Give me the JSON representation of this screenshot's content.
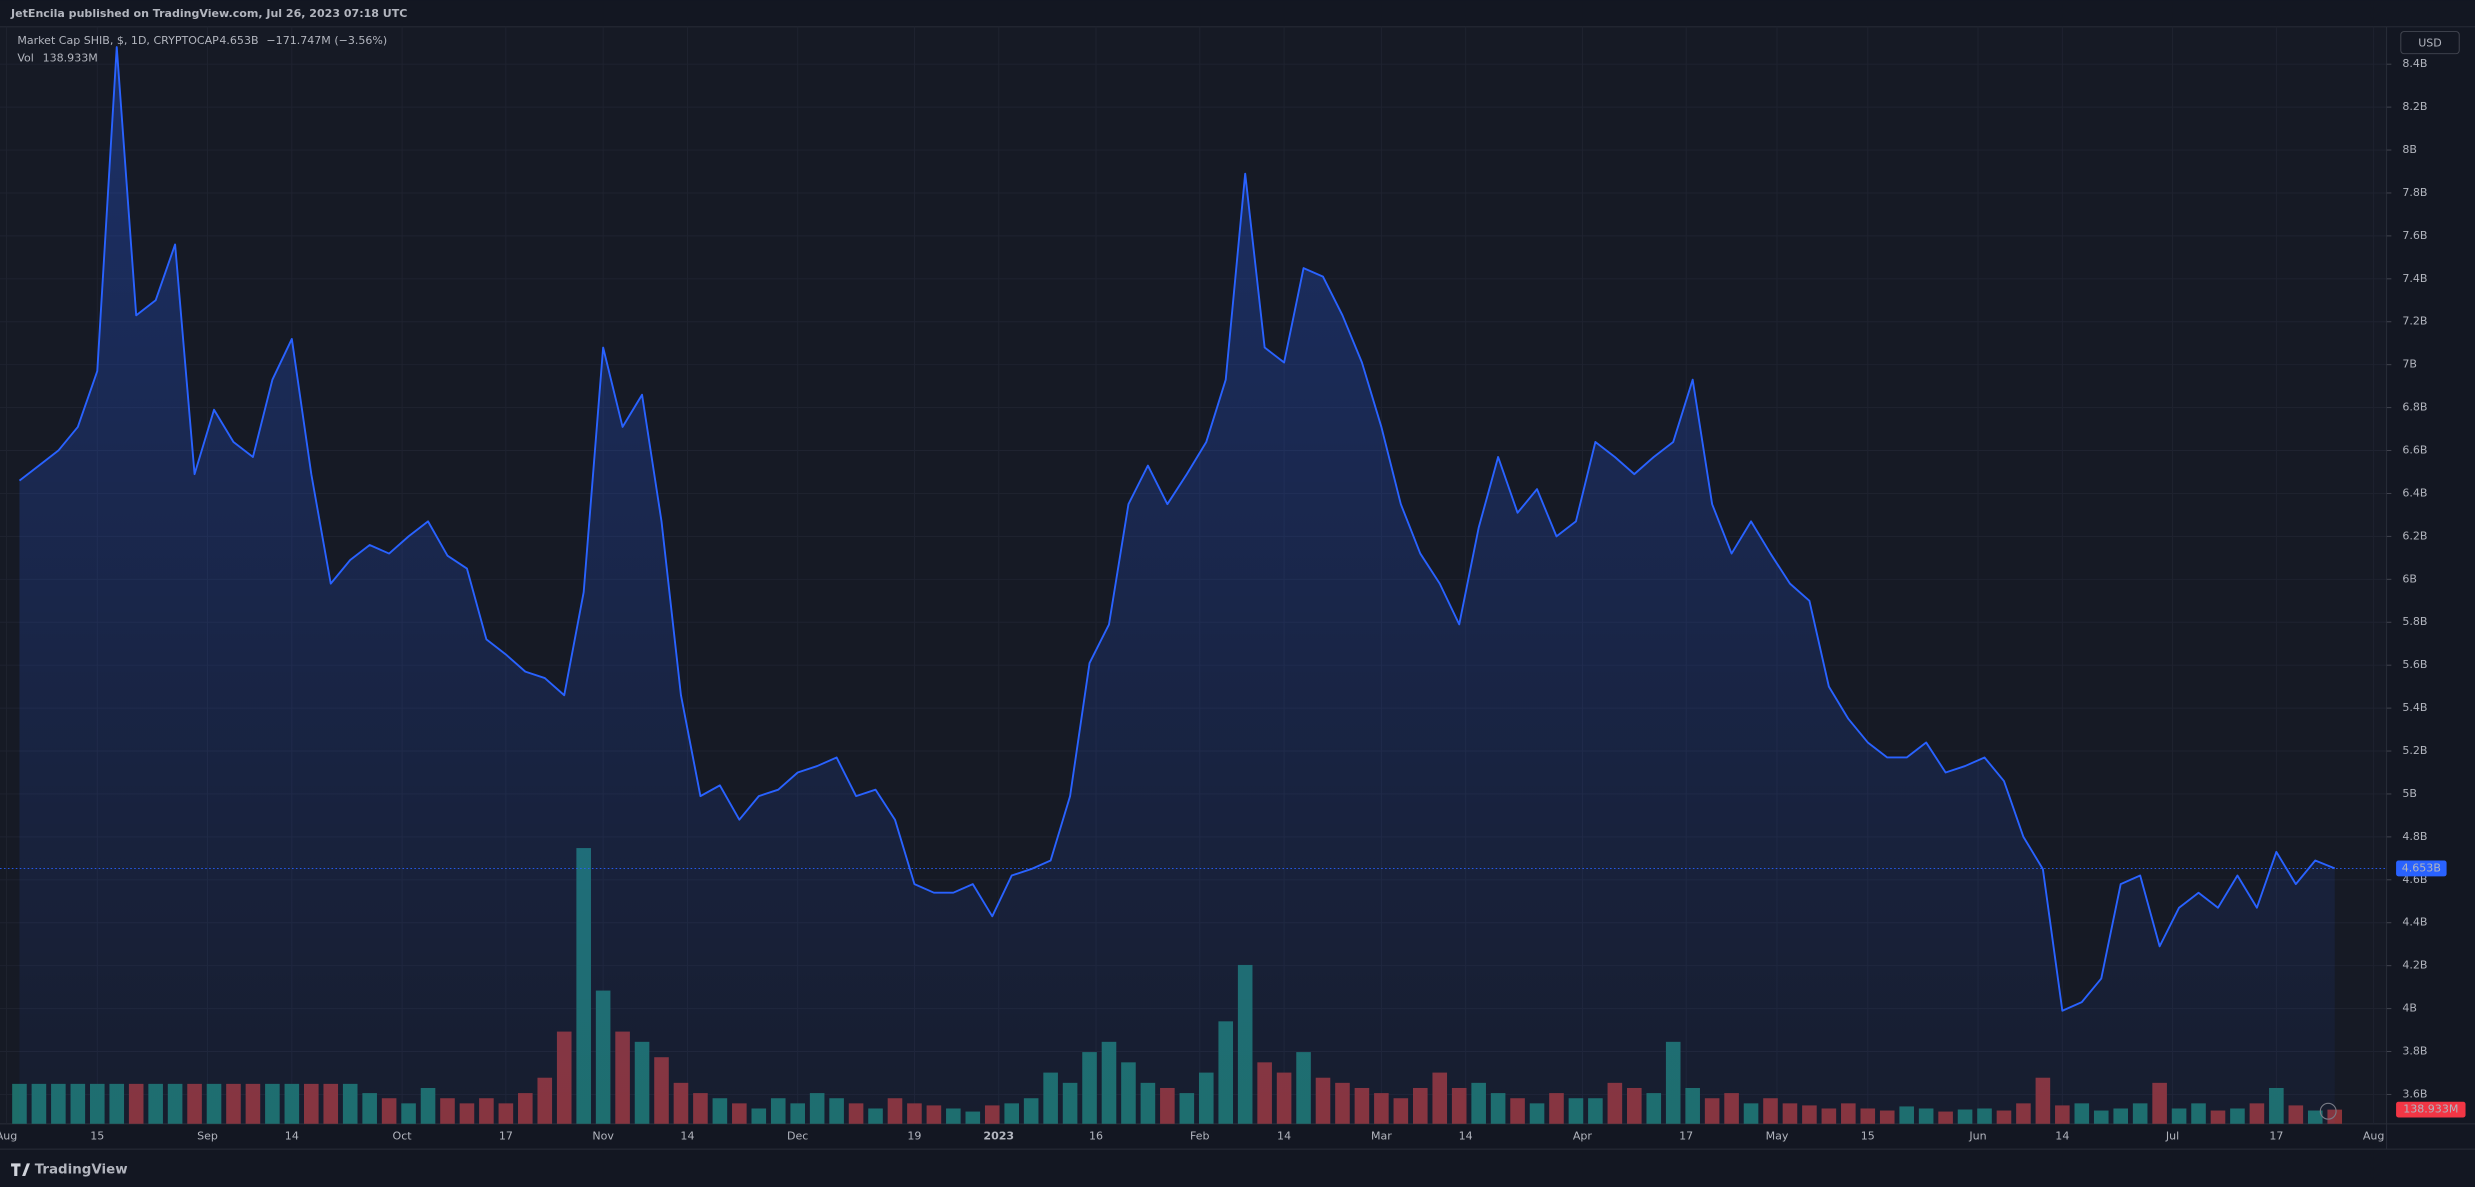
{
  "header": "JetEncila published on TradingView.com, Jul 26, 2023 07:18 UTC",
  "footer": "TradingView",
  "currency": "USD",
  "chart_data": {
    "type": "line",
    "change": "−171.747M (−3.56%)",
    "x": [
      "2022-08-03",
      "2022-08-06",
      "2022-08-09",
      "2022-08-12",
      "2022-08-15",
      "2022-08-18",
      "2022-08-21",
      "2022-08-24",
      "2022-08-27",
      "2022-08-30",
      "2022-09-02",
      "2022-09-05",
      "2022-09-08",
      "2022-09-11",
      "2022-09-14",
      "2022-09-17",
      "2022-09-20",
      "2022-09-23",
      "2022-09-26",
      "2022-09-29",
      "2022-10-02",
      "2022-10-05",
      "2022-10-08",
      "2022-10-11",
      "2022-10-14",
      "2022-10-17",
      "2022-10-20",
      "2022-10-23",
      "2022-10-26",
      "2022-10-29",
      "2022-11-01",
      "2022-11-04",
      "2022-11-07",
      "2022-11-10",
      "2022-11-13",
      "2022-11-16",
      "2022-11-19",
      "2022-11-22",
      "2022-11-25",
      "2022-11-28",
      "2022-12-01",
      "2022-12-04",
      "2022-12-07",
      "2022-12-10",
      "2022-12-13",
      "2022-12-16",
      "2022-12-19",
      "2022-12-22",
      "2022-12-25",
      "2022-12-28",
      "2022-12-31",
      "2023-01-03",
      "2023-01-06",
      "2023-01-09",
      "2023-01-12",
      "2023-01-15",
      "2023-01-18",
      "2023-01-21",
      "2023-01-24",
      "2023-01-27",
      "2023-01-30",
      "2023-02-02",
      "2023-02-05",
      "2023-02-08",
      "2023-02-11",
      "2023-02-14",
      "2023-02-17",
      "2023-02-20",
      "2023-02-23",
      "2023-02-26",
      "2023-03-01",
      "2023-03-04",
      "2023-03-07",
      "2023-03-10",
      "2023-03-13",
      "2023-03-16",
      "2023-03-19",
      "2023-03-22",
      "2023-03-25",
      "2023-03-28",
      "2023-03-31",
      "2023-04-03",
      "2023-04-06",
      "2023-04-09",
      "2023-04-12",
      "2023-04-15",
      "2023-04-18",
      "2023-04-21",
      "2023-04-24",
      "2023-04-27",
      "2023-04-30",
      "2023-05-03",
      "2023-05-06",
      "2023-05-09",
      "2023-05-12",
      "2023-05-15",
      "2023-05-18",
      "2023-05-21",
      "2023-05-24",
      "2023-05-27",
      "2023-05-30",
      "2023-06-02",
      "2023-06-05",
      "2023-06-08",
      "2023-06-11",
      "2023-06-14",
      "2023-06-17",
      "2023-06-20",
      "2023-06-23",
      "2023-06-26",
      "2023-06-29",
      "2023-07-02",
      "2023-07-05",
      "2023-07-08",
      "2023-07-11",
      "2023-07-14",
      "2023-07-17",
      "2023-07-20",
      "2023-07-23",
      "2023-07-26"
    ],
    "series": [
      {
        "name": "Market Cap SHIB, $, 1D, CRYPTOCAP",
        "color": "#2962ff",
        "last_value_label": "4.653B",
        "values": [
          6.46,
          6.53,
          6.6,
          6.71,
          6.97,
          8.48,
          7.23,
          7.3,
          7.56,
          6.49,
          6.79,
          6.64,
          6.57,
          6.93,
          7.12,
          6.49,
          5.98,
          6.09,
          6.16,
          6.12,
          6.2,
          6.27,
          6.11,
          6.05,
          5.72,
          5.65,
          5.57,
          5.54,
          5.46,
          5.94,
          7.08,
          6.71,
          6.86,
          6.27,
          5.46,
          4.99,
          5.04,
          4.88,
          4.99,
          5.02,
          5.1,
          5.13,
          5.17,
          4.99,
          5.02,
          4.88,
          4.58,
          4.54,
          4.54,
          4.58,
          4.43,
          4.62,
          4.65,
          4.69,
          4.99,
          5.61,
          5.79,
          6.35,
          6.53,
          6.35,
          6.49,
          6.64,
          6.93,
          7.89,
          7.08,
          7.01,
          7.45,
          7.41,
          7.23,
          7.01,
          6.71,
          6.35,
          6.12,
          5.98,
          5.79,
          6.24,
          6.57,
          6.31,
          6.42,
          6.2,
          6.27,
          6.64,
          6.57,
          6.49,
          6.57,
          6.64,
          6.93,
          6.35,
          6.12,
          6.27,
          6.12,
          5.98,
          5.9,
          5.5,
          5.35,
          5.24,
          5.17,
          5.17,
          5.24,
          5.1,
          5.13,
          5.17,
          5.06,
          4.8,
          4.65,
          3.99,
          4.03,
          4.14,
          4.58,
          4.62,
          4.29,
          4.47,
          4.54,
          4.47,
          4.62,
          4.47,
          4.73,
          4.58,
          4.69,
          4.653
        ]
      },
      {
        "name": "Vol",
        "axis": "y2",
        "up_color": "#1e6e69",
        "down_color": "#8a3338",
        "last_value_label": "138.933M",
        "values": [
          390,
          390,
          390,
          390,
          390,
          390,
          390,
          390,
          390,
          390,
          390,
          390,
          390,
          390,
          390,
          390,
          390,
          390,
          300,
          250,
          200,
          350,
          250,
          200,
          250,
          200,
          300,
          450,
          900,
          2690,
          1300,
          900,
          800,
          650,
          400,
          300,
          250,
          200,
          150,
          250,
          200,
          300,
          250,
          200,
          150,
          250,
          200,
          180,
          150,
          120,
          180,
          200,
          250,
          500,
          400,
          700,
          800,
          600,
          400,
          350,
          300,
          500,
          1000,
          1550,
          600,
          500,
          700,
          450,
          400,
          350,
          300,
          250,
          350,
          500,
          350,
          400,
          300,
          250,
          200,
          300,
          250,
          250,
          400,
          350,
          300,
          800,
          350,
          250,
          300,
          200,
          250,
          200,
          180,
          150,
          200,
          150,
          130,
          170,
          150,
          120,
          140,
          150,
          130,
          200,
          450,
          180,
          200,
          130,
          150,
          200,
          400,
          150,
          200,
          130,
          150,
          200,
          350,
          180,
          130,
          138.933
        ]
      }
    ],
    "xlim": [
      "2022-07-31",
      "2023-08-03"
    ],
    "xticks": [
      {
        "value": "2022-08-01",
        "label": "Aug"
      },
      {
        "value": "2022-08-15",
        "label": "15"
      },
      {
        "value": "2022-09-01",
        "label": "Sep"
      },
      {
        "value": "2022-09-14",
        "label": "14"
      },
      {
        "value": "2022-10-01",
        "label": "Oct"
      },
      {
        "value": "2022-10-17",
        "label": "17"
      },
      {
        "value": "2022-11-01",
        "label": "Nov"
      },
      {
        "value": "2022-11-14",
        "label": "14"
      },
      {
        "value": "2022-12-01",
        "label": "Dec"
      },
      {
        "value": "2022-12-19",
        "label": "19"
      },
      {
        "value": "2023-01-01",
        "label": "2023"
      },
      {
        "value": "2023-01-16",
        "label": "16"
      },
      {
        "value": "2023-02-01",
        "label": "Feb"
      },
      {
        "value": "2023-02-14",
        "label": "14"
      },
      {
        "value": "2023-03-01",
        "label": "Mar"
      },
      {
        "value": "2023-03-14",
        "label": "14"
      },
      {
        "value": "2023-04-01",
        "label": "Apr"
      },
      {
        "value": "2023-04-17",
        "label": "17"
      },
      {
        "value": "2023-05-01",
        "label": "May"
      },
      {
        "value": "2023-05-15",
        "label": "15"
      },
      {
        "value": "2023-06-01",
        "label": "Jun"
      },
      {
        "value": "2023-06-14",
        "label": "14"
      },
      {
        "value": "2023-07-01",
        "label": "Jul"
      },
      {
        "value": "2023-07-17",
        "label": "17"
      },
      {
        "value": "2023-08-01",
        "label": "Aug"
      }
    ],
    "ylim": [
      3.463,
      8.574
    ],
    "yticks": [
      {
        "value": 3.6,
        "label": "3.6B"
      },
      {
        "value": 3.8,
        "label": "3.8B"
      },
      {
        "value": 4,
        "label": "4B"
      },
      {
        "value": 4.2,
        "label": "4.2B"
      },
      {
        "value": 4.4,
        "label": "4.4B"
      },
      {
        "value": 4.6,
        "label": "4.6B"
      },
      {
        "value": 4.8,
        "label": "4.8B"
      },
      {
        "value": 5,
        "label": "5B"
      },
      {
        "value": 5.2,
        "label": "5.2B"
      },
      {
        "value": 5.4,
        "label": "5.4B"
      },
      {
        "value": 5.6,
        "label": "5.6B"
      },
      {
        "value": 5.8,
        "label": "5.8B"
      },
      {
        "value": 6,
        "label": "6B"
      },
      {
        "value": 6.2,
        "label": "6.2B"
      },
      {
        "value": 6.4,
        "label": "6.4B"
      },
      {
        "value": 6.6,
        "label": "6.6B"
      },
      {
        "value": 6.8,
        "label": "6.8B"
      },
      {
        "value": 7,
        "label": "7B"
      },
      {
        "value": 7.2,
        "label": "7.2B"
      },
      {
        "value": 7.4,
        "label": "7.4B"
      },
      {
        "value": 7.6,
        "label": "7.6B"
      },
      {
        "value": 7.8,
        "label": "7.8B"
      },
      {
        "value": 8,
        "label": "8B"
      },
      {
        "value": 8.2,
        "label": "8.2B"
      },
      {
        "value": 8.4,
        "label": "8.4B"
      }
    ],
    "y2lim": [
      0,
      10700
    ],
    "grid": true
  }
}
